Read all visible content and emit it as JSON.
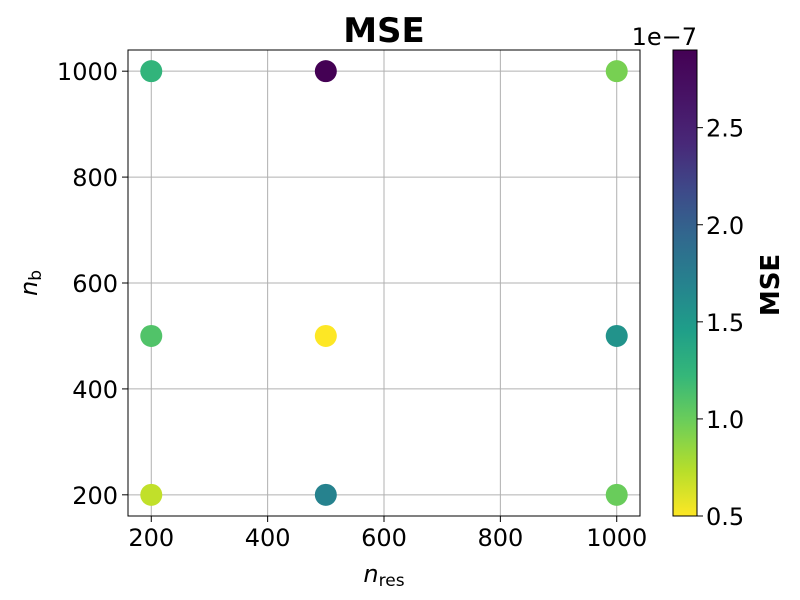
{
  "chart_data": {
    "type": "scatter",
    "title": "MSE",
    "xlabel": "n",
    "xlabel_sub": "res",
    "ylabel": "n",
    "ylabel_sub": "b",
    "xlim": [
      160,
      1040
    ],
    "ylim": [
      160,
      1040
    ],
    "xticks": [
      200,
      400,
      600,
      800,
      1000
    ],
    "yticks": [
      200,
      400,
      600,
      800,
      1000
    ],
    "grid": true,
    "points": [
      {
        "x": 200,
        "y": 1000,
        "mse": 1.25e-07
      },
      {
        "x": 500,
        "y": 1000,
        "mse": 2.9e-07
      },
      {
        "x": 1000,
        "y": 1000,
        "mse": 9.5e-08
      },
      {
        "x": 200,
        "y": 500,
        "mse": 1.1e-07
      },
      {
        "x": 500,
        "y": 500,
        "mse": 5e-08
      },
      {
        "x": 1000,
        "y": 500,
        "mse": 1.55e-07
      },
      {
        "x": 200,
        "y": 200,
        "mse": 7e-08
      },
      {
        "x": 500,
        "y": 200,
        "mse": 1.7e-07
      },
      {
        "x": 1000,
        "y": 200,
        "mse": 1e-07
      }
    ],
    "colorbar": {
      "label": "MSE",
      "multiplier": "1e−7",
      "colormap": "viridis",
      "range": [
        0.5,
        2.9
      ],
      "ticks": [
        0.5,
        1.0,
        1.5,
        2.0,
        2.5
      ],
      "tick_labels": [
        "0.5",
        "1.0",
        "1.5",
        "2.0",
        "2.5"
      ]
    }
  }
}
